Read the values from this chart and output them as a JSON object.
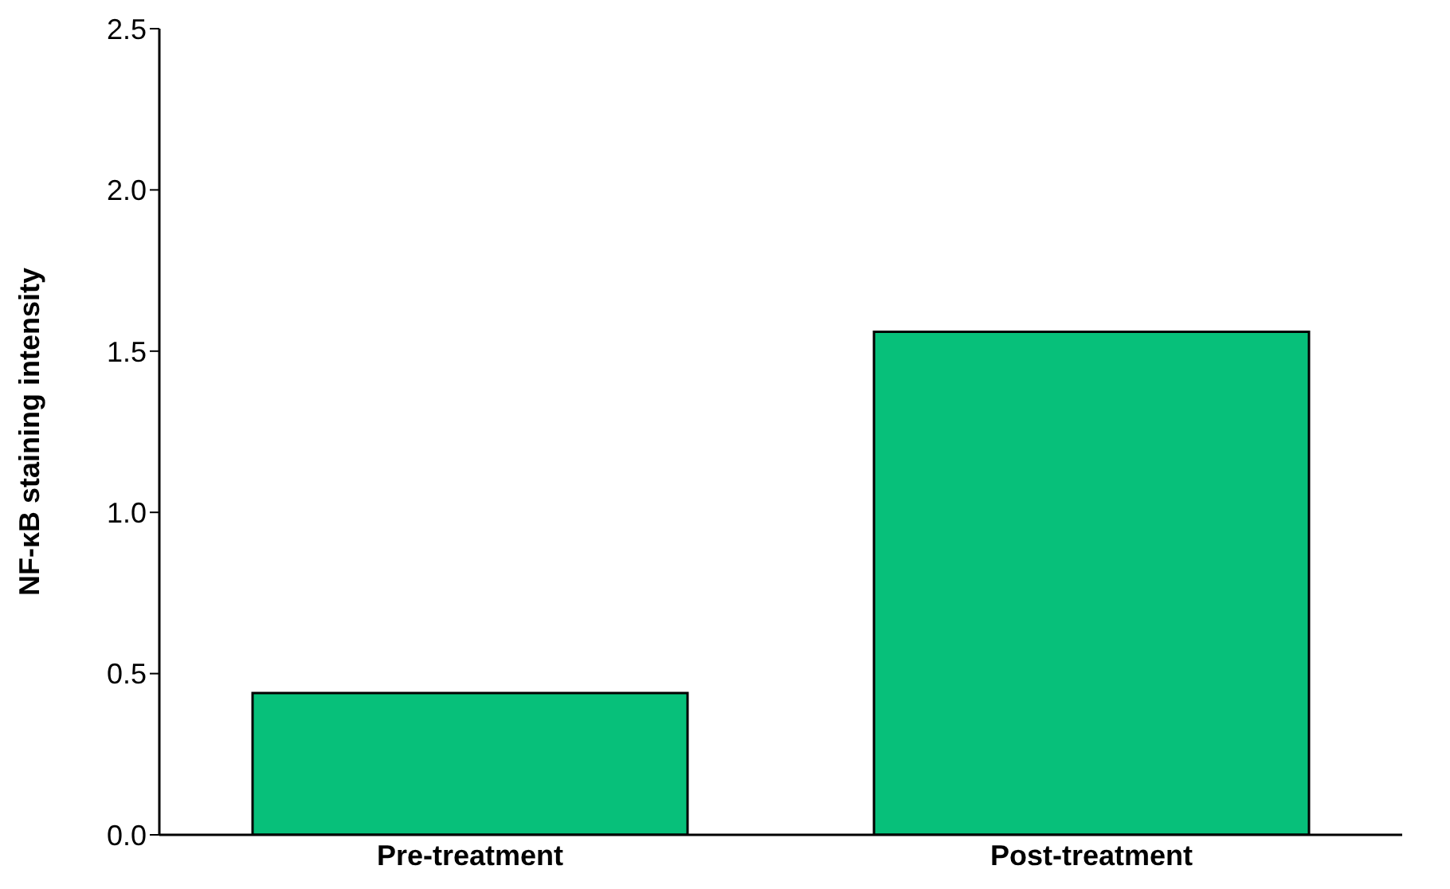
{
  "chart_data": {
    "type": "bar",
    "ylabel": "NF-κB staining intensity",
    "categories": [
      "Pre-treatment",
      "Post-treatment"
    ],
    "values": [
      0.44,
      1.56
    ],
    "color": "#07c07a",
    "ylim": [
      0,
      2.5
    ],
    "yticks": [
      {
        "value": 0,
        "label": "0.0"
      },
      {
        "value": 0.5,
        "label": "0.5"
      },
      {
        "value": 1,
        "label": "1.0"
      },
      {
        "value": 1.5,
        "label": "1.5"
      },
      {
        "value": 2,
        "label": "2.0"
      },
      {
        "value": 2.5,
        "label": "2.5"
      }
    ],
    "grid": false,
    "legend": false
  }
}
